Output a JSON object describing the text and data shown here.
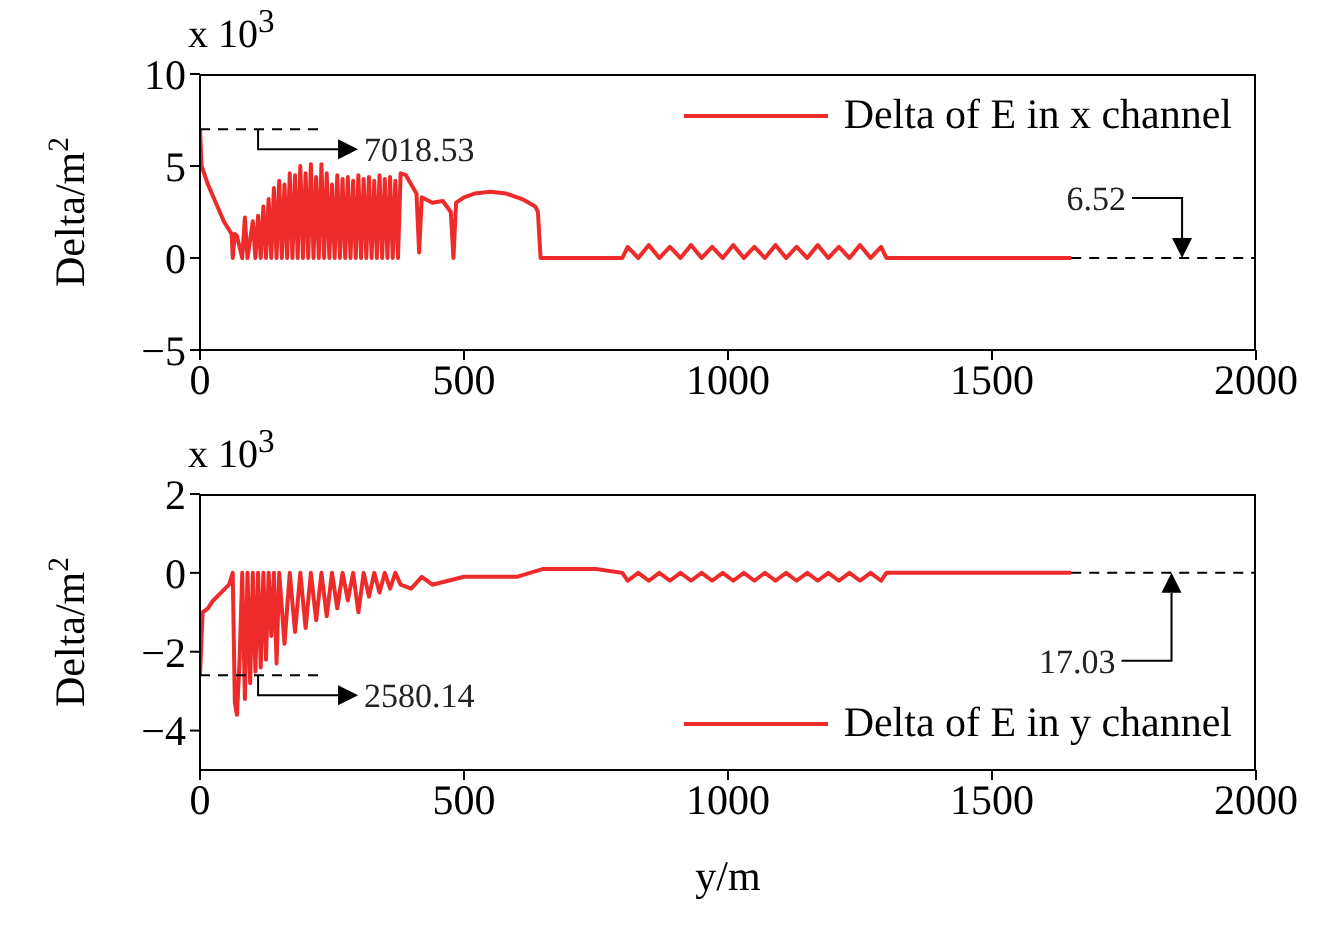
{
  "chart_data": [
    {
      "type": "line",
      "ylabel": "Delta/m$^{2}$",
      "xlim": [
        0,
        2000
      ],
      "xticks": [
        0,
        500,
        1000,
        1500,
        2000
      ],
      "ylim": [
        -5,
        10
      ],
      "yticks": [
        -5,
        0,
        5,
        10
      ],
      "legend": "top right",
      "annotations": [
        "x 10$^{3}$",
        {
          "text": "7018.53",
          "x": 110,
          "y": 7.0
        },
        {
          "text": "6.52",
          "x": 1860,
          "y": 0
        }
      ],
      "series": [
        {
          "name": "Delta of E in x channel",
          "color": "#ee2b2b",
          "x": [
            0,
            3,
            15,
            30,
            45,
            60,
            62,
            66,
            70,
            80,
            85,
            90,
            100,
            105,
            110,
            115,
            120,
            125,
            130,
            135,
            140,
            145,
            150,
            155,
            160,
            165,
            170,
            175,
            180,
            185,
            190,
            195,
            200,
            205,
            210,
            215,
            220,
            225,
            230,
            235,
            240,
            245,
            250,
            255,
            260,
            265,
            270,
            275,
            280,
            285,
            290,
            295,
            300,
            305,
            310,
            315,
            320,
            325,
            330,
            335,
            340,
            345,
            350,
            355,
            360,
            365,
            370,
            375,
            380,
            390,
            400,
            410,
            415,
            420,
            440,
            460,
            475,
            480,
            485,
            490,
            500,
            520,
            550,
            580,
            610,
            635,
            640,
            645,
            700,
            800,
            810,
            830,
            850,
            870,
            890,
            910,
            930,
            950,
            970,
            990,
            1010,
            1030,
            1050,
            1070,
            1090,
            1110,
            1130,
            1150,
            1170,
            1190,
            1210,
            1230,
            1250,
            1270,
            1290,
            1300,
            1650
          ],
          "values": [
            7.0,
            5.0,
            4.0,
            3.0,
            2.0,
            1.3,
            0,
            1.3,
            1.2,
            0,
            2.2,
            0,
            2.0,
            0,
            2.3,
            0,
            2.8,
            0,
            3.2,
            0,
            3.8,
            0,
            4.2,
            0,
            4.0,
            0,
            4.6,
            0,
            4.5,
            0,
            5.0,
            0,
            4.6,
            0,
            5.1,
            0,
            4.4,
            0,
            5.1,
            0,
            4.6,
            0,
            4.0,
            0,
            4.5,
            0,
            4.3,
            0,
            4.4,
            0,
            4.2,
            0,
            4.5,
            0,
            4.3,
            0,
            4.4,
            0,
            4.2,
            0,
            4.5,
            0,
            4.3,
            0,
            4.4,
            0,
            4.2,
            0,
            4.6,
            4.5,
            4.0,
            3.5,
            0.3,
            3.3,
            3.0,
            3.1,
            2.5,
            0,
            3.0,
            3.1,
            3.3,
            3.5,
            3.6,
            3.5,
            3.2,
            2.8,
            2.5,
            0,
            0,
            0,
            0.6,
            0,
            0.7,
            0,
            0.6,
            0,
            0.7,
            0,
            0.6,
            0,
            0.7,
            0,
            0.6,
            0,
            0.7,
            0,
            0.6,
            0,
            0.7,
            0,
            0.6,
            0,
            0.7,
            0,
            0.6,
            0,
            0
          ]
        },
        {
          "type": "line",
          "color": "#000000",
          "line_style": "dashed",
          "x": [
            0,
            230
          ],
          "values": [
            7.0,
            7.0
          ]
        },
        {
          "type": "line",
          "color": "#000000",
          "line_style": "dashed",
          "x": [
            1650,
            2000
          ],
          "values": [
            0,
            0
          ]
        }
      ]
    },
    {
      "type": "line",
      "xlabel": "y/m",
      "ylabel": "Delta/m$^{2}$",
      "xlim": [
        0,
        2000
      ],
      "xticks": [
        0,
        500,
        1000,
        1500,
        2000
      ],
      "ylim": [
        -5,
        2
      ],
      "yticks": [
        -4,
        -2,
        0,
        2
      ],
      "legend": "bottom right",
      "annotations": [
        "x 10$^{3}$",
        {
          "text": "2580.14",
          "x": 110,
          "y": -2.6
        },
        {
          "text": "17.03",
          "x": 1840,
          "y": 0
        }
      ],
      "series": [
        {
          "name": "Delta of E in y channel",
          "color": "#ee2b2b",
          "x": [
            0,
            5,
            15,
            25,
            40,
            55,
            62,
            66,
            70,
            75,
            80,
            85,
            90,
            95,
            100,
            105,
            110,
            115,
            120,
            125,
            130,
            135,
            140,
            145,
            150,
            160,
            170,
            180,
            190,
            200,
            210,
            220,
            230,
            240,
            250,
            260,
            270,
            280,
            290,
            300,
            310,
            320,
            330,
            340,
            350,
            360,
            370,
            380,
            400,
            420,
            440,
            470,
            500,
            520,
            600,
            650,
            750,
            800,
            810,
            830,
            850,
            870,
            890,
            910,
            930,
            950,
            970,
            990,
            1010,
            1030,
            1050,
            1070,
            1090,
            1110,
            1130,
            1150,
            1170,
            1190,
            1210,
            1230,
            1250,
            1270,
            1290,
            1300,
            1500,
            1650
          ],
          "values": [
            -2.6,
            -1.0,
            -0.9,
            -0.7,
            -0.5,
            -0.3,
            0,
            -3.3,
            -3.6,
            -2.2,
            0,
            -3.2,
            0,
            -2.8,
            0,
            -2.5,
            0,
            -2.4,
            0,
            -2.2,
            0,
            -1.6,
            0,
            -2.3,
            0,
            -1.8,
            0,
            -1.5,
            0,
            -1.4,
            0,
            -1.2,
            0,
            -1.1,
            0,
            -0.9,
            0,
            -0.7,
            0,
            -1.0,
            0,
            -0.6,
            0,
            -0.5,
            0,
            -0.4,
            0,
            -0.3,
            -0.4,
            -0.1,
            -0.3,
            -0.2,
            -0.1,
            -0.1,
            -0.1,
            0.1,
            0.1,
            0,
            -0.2,
            0,
            -0.2,
            0,
            -0.2,
            0,
            -0.2,
            0,
            -0.2,
            0,
            -0.2,
            0,
            -0.2,
            0,
            -0.2,
            0,
            -0.2,
            0,
            -0.2,
            0,
            -0.2,
            0,
            -0.2,
            0,
            -0.2,
            0,
            0,
            0
          ]
        },
        {
          "type": "line",
          "color": "#000000",
          "line_style": "dashed",
          "x": [
            0,
            230
          ],
          "values": [
            -2.6,
            -2.6
          ]
        },
        {
          "type": "line",
          "color": "#000000",
          "line_style": "dashed",
          "x": [
            1650,
            2000
          ],
          "values": [
            0,
            0
          ]
        }
      ]
    }
  ]
}
